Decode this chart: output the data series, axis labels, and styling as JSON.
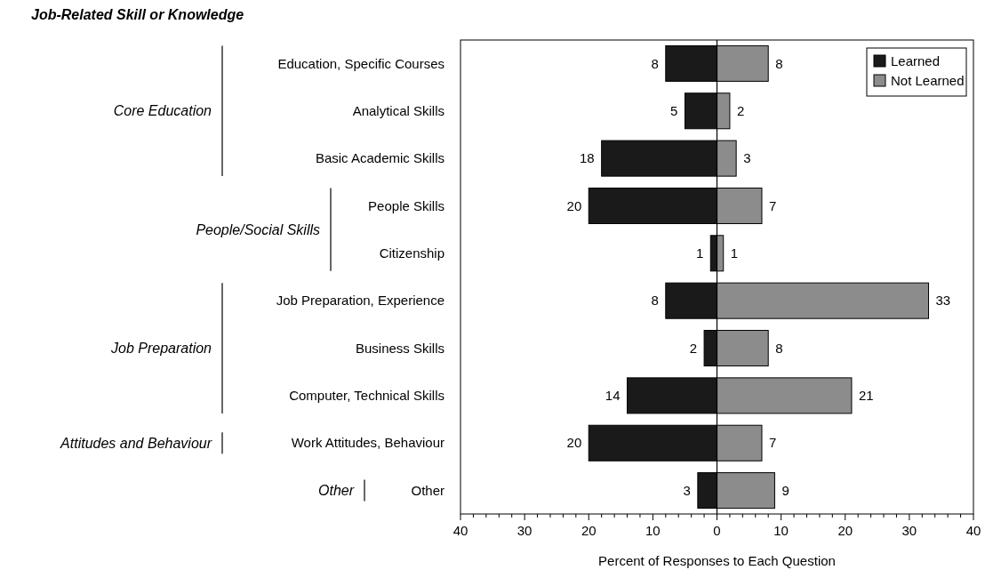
{
  "chart_data": {
    "type": "bar",
    "orientation": "horizontal",
    "title": "Job-Related Skill or Knowledge",
    "xlabel": "Percent of Responses to Each Question",
    "categories": [
      "Education, Specific Courses",
      "Analytical Skills",
      "Basic Academic Skills",
      "People Skills",
      "Citizenship",
      "Job Preparation, Experience",
      "Business Skills",
      "Computer, Technical Skills",
      "Work Attitudes, Behaviour",
      "Other"
    ],
    "series": [
      {
        "name": "Learned",
        "color": "#1a1a1a",
        "base": [
          -8,
          -5,
          -18,
          -20,
          -1,
          -8,
          -2,
          -14,
          -20,
          -3
        ],
        "values": [
          8,
          5,
          18,
          20,
          1,
          8,
          2,
          14,
          20,
          3
        ],
        "value_labels": [
          "8",
          "5",
          "18",
          "20",
          "1",
          "8",
          "2",
          "14",
          "20",
          "3"
        ]
      },
      {
        "name": "Not Learned",
        "color": "#8c8c8c",
        "values": [
          8,
          2,
          3,
          7,
          1,
          33,
          8,
          21,
          7,
          9
        ],
        "value_labels": [
          "8",
          "2",
          "3",
          "7",
          "1",
          "33",
          "8",
          "21",
          "7",
          "9"
        ]
      }
    ],
    "xlim": [
      -40,
      40
    ],
    "xticks": [
      {
        "value": -40,
        "label": "40"
      },
      {
        "value": -38,
        "label": null
      },
      {
        "value": -36,
        "label": null
      },
      {
        "value": -34,
        "label": null
      },
      {
        "value": -32,
        "label": null
      },
      {
        "value": -30,
        "label": "30"
      },
      {
        "value": -28,
        "label": null
      },
      {
        "value": -26,
        "label": null
      },
      {
        "value": -24,
        "label": null
      },
      {
        "value": -22,
        "label": null
      },
      {
        "value": -20,
        "label": "20"
      },
      {
        "value": -18,
        "label": null
      },
      {
        "value": -16,
        "label": null
      },
      {
        "value": -14,
        "label": null
      },
      {
        "value": -12,
        "label": null
      },
      {
        "value": -10,
        "label": "10"
      },
      {
        "value": -8,
        "label": null
      },
      {
        "value": -6,
        "label": null
      },
      {
        "value": -4,
        "label": null
      },
      {
        "value": -2,
        "label": null
      },
      {
        "value": 0,
        "label": "0"
      },
      {
        "value": 2,
        "label": null
      },
      {
        "value": 4,
        "label": null
      },
      {
        "value": 6,
        "label": null
      },
      {
        "value": 8,
        "label": null
      },
      {
        "value": 10,
        "label": "10"
      },
      {
        "value": 12,
        "label": null
      },
      {
        "value": 14,
        "label": null
      },
      {
        "value": 16,
        "label": null
      },
      {
        "value": 18,
        "label": null
      },
      {
        "value": 20,
        "label": "20"
      },
      {
        "value": 22,
        "label": null
      },
      {
        "value": 24,
        "label": null
      },
      {
        "value": 26,
        "label": null
      },
      {
        "value": 28,
        "label": null
      },
      {
        "value": 30,
        "label": "30"
      },
      {
        "value": 32,
        "label": null
      },
      {
        "value": 34,
        "label": null
      },
      {
        "value": 36,
        "label": null
      },
      {
        "value": 38,
        "label": null
      },
      {
        "value": 40,
        "label": "40"
      }
    ],
    "ref_lines": [
      {
        "axis": "x",
        "value": 0,
        "color": "#000000"
      }
    ],
    "annotations": [
      "Core Education",
      "People/Social Skills",
      "Job Preparation",
      "Attitudes and Behaviour",
      "Other"
    ],
    "legend": "top right",
    "grid": false
  }
}
